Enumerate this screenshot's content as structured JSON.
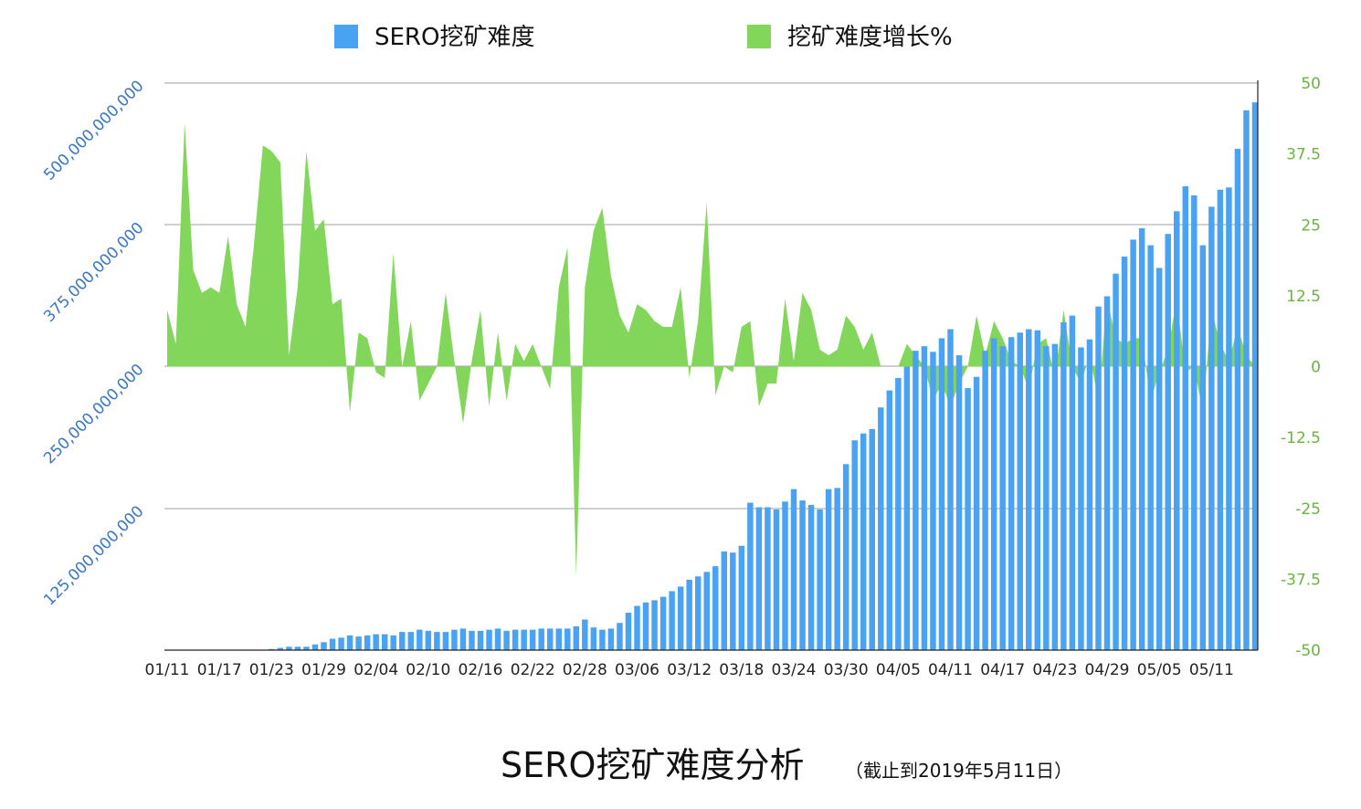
{
  "chart_data": {
    "type": "bar",
    "title": "SERO挖矿难度分析",
    "subtitle": "（截止到2019年5月11日）",
    "legend": [
      {
        "label": "SERO挖矿难度",
        "color": "#4aa3f2"
      },
      {
        "label": "挖矿难度增长%",
        "color": "#82d65a"
      }
    ],
    "x_tick_labels": [
      "01/11",
      "01/17",
      "01/23",
      "01/29",
      "02/04",
      "02/10",
      "02/16",
      "02/22",
      "02/28",
      "03/06",
      "03/12",
      "03/18",
      "03/24",
      "03/30",
      "04/05",
      "04/11",
      "04/17",
      "04/23",
      "04/29",
      "05/05",
      "05/11"
    ],
    "y_left": {
      "ylim": [
        0,
        500000000000
      ],
      "tick_labels": [
        "125,000,000,000",
        "250,000,000,000",
        "375,000,000,000",
        "500,000,000,000"
      ],
      "tick_values": [
        125000000000,
        250000000000,
        375000000000,
        500000000000
      ]
    },
    "y_right": {
      "ylim": [
        -50,
        50
      ],
      "tick_labels": [
        "50",
        "37.5",
        "25",
        "12.5",
        "0",
        "-12.5",
        "-25",
        "-37.5",
        "-50"
      ],
      "tick_values": [
        50,
        37.5,
        25,
        12.5,
        0,
        -12.5,
        -25,
        -37.5,
        -50
      ]
    },
    "series": [
      {
        "name": "SERO挖矿难度",
        "type": "bar",
        "axis": "left",
        "color": "#4aa3f2",
        "values": [
          0,
          0,
          0,
          0,
          0,
          0,
          0,
          0,
          0,
          0,
          0,
          0,
          1000000000,
          2000000000,
          3000000000,
          3000000000,
          3000000000,
          5000000000,
          7000000000,
          10000000000,
          11000000000,
          13000000000,
          12000000000,
          13000000000,
          14000000000,
          14000000000,
          13000000000,
          16000000000,
          16000000000,
          18000000000,
          17000000000,
          16000000000,
          16000000000,
          18000000000,
          19000000000,
          17000000000,
          17000000000,
          18000000000,
          19000000000,
          17000000000,
          18000000000,
          18000000000,
          18000000000,
          19000000000,
          19000000000,
          19000000000,
          19000000000,
          21000000000,
          27000000000,
          20000000000,
          18000000000,
          19000000000,
          24000000000,
          33000000000,
          39000000000,
          42000000000,
          44000000000,
          47000000000,
          52000000000,
          56000000000,
          62000000000,
          65000000000,
          69000000000,
          74000000000,
          87000000000,
          86000000000,
          92000000000,
          130000000000,
          126000000000,
          126000000000,
          124000000000,
          131000000000,
          142000000000,
          132000000000,
          128000000000,
          124000000000,
          142000000000,
          143000000000,
          164000000000,
          185000000000,
          191000000000,
          195000000000,
          214000000000,
          229000000000,
          240000000000,
          250000000000,
          264000000000,
          268000000000,
          263000000000,
          275000000000,
          283000000000,
          260000000000,
          231000000000,
          241000000000,
          264000000000,
          275000000000,
          268000000000,
          276000000000,
          280000000000,
          283000000000,
          282000000000,
          268000000000,
          270000000000,
          289000000000,
          295000000000,
          267000000000,
          274000000000,
          303000000000,
          312000000000,
          332000000000,
          347000000000,
          362000000000,
          372000000000,
          357000000000,
          337000000000,
          367000000000,
          387000000000,
          409000000000,
          401000000000,
          357000000000,
          391000000000,
          406000000000,
          408000000000,
          442000000000,
          476000000000,
          483000000000
        ]
      },
      {
        "name": "挖矿难度增长%",
        "type": "area",
        "axis": "right",
        "color": "#82d65a",
        "values": [
          10,
          4,
          43,
          17,
          13,
          14,
          13,
          23,
          11,
          7,
          22,
          39,
          38,
          36,
          2,
          14,
          38,
          24,
          26,
          11,
          12,
          -8,
          6,
          5,
          -1,
          -2,
          20,
          0,
          8,
          -6,
          -3,
          0,
          13,
          1,
          -10,
          1,
          10,
          -7,
          6,
          -6,
          4,
          1,
          4,
          0,
          -4,
          14,
          21,
          -37,
          14,
          24,
          28,
          16,
          9,
          6,
          11,
          10,
          8,
          7,
          7,
          14,
          -2,
          8,
          29,
          -5,
          0,
          -1,
          7,
          8,
          -7,
          -3,
          -3,
          12,
          1,
          13,
          10,
          3,
          2,
          3,
          9,
          7,
          3,
          6,
          0,
          0,
          0,
          4,
          2,
          0,
          -6,
          -3,
          -7,
          -3,
          0,
          9,
          2,
          8,
          5,
          1,
          0,
          -4,
          4,
          5,
          -2,
          10,
          0,
          -3,
          2,
          -6,
          12,
          5,
          4,
          5,
          5,
          -6,
          -1,
          3,
          12,
          -1,
          0,
          -8,
          10,
          4,
          1,
          7,
          2
        ]
      }
    ]
  }
}
